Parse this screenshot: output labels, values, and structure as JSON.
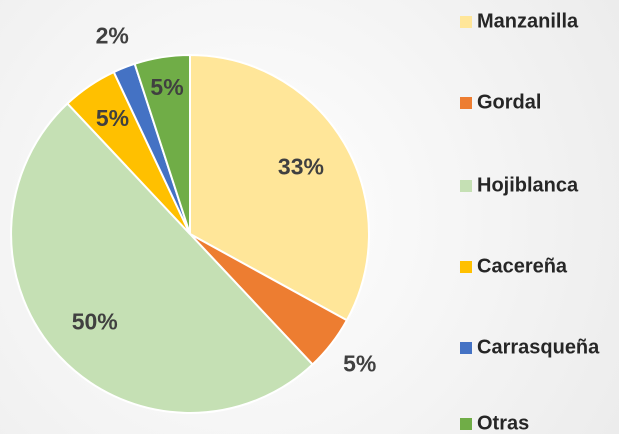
{
  "chart_data": {
    "type": "pie",
    "categories": [
      "Manzanilla",
      "Gordal",
      "Hojiblanca",
      "Cacereña",
      "Carrasqueña",
      "Otras"
    ],
    "values": [
      33,
      5,
      50,
      5,
      2,
      5
    ],
    "value_labels": [
      "33%",
      "5%",
      "50%",
      "5%",
      "2%",
      "5%"
    ],
    "colors": [
      "#ffe699",
      "#ed7d31",
      "#c5e0b4",
      "#ffc000",
      "#4472c4",
      "#70ad47"
    ],
    "legend": "right"
  }
}
